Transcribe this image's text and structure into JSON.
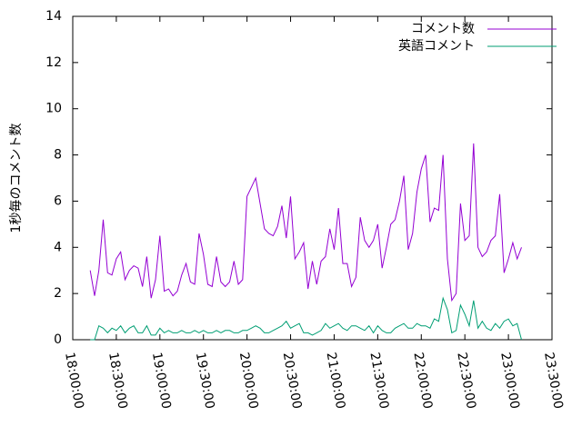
{
  "chart_data": {
    "type": "line",
    "y_label": "1秒毎のコメント数",
    "x": [
      "18:12:00",
      "18:15:00",
      "18:18:00",
      "18:21:00",
      "18:24:00",
      "18:27:00",
      "18:30:00",
      "18:33:00",
      "18:36:00",
      "18:39:00",
      "18:42:00",
      "18:45:00",
      "18:48:00",
      "18:51:00",
      "18:54:00",
      "18:57:00",
      "19:00:00",
      "19:03:00",
      "19:06:00",
      "19:09:00",
      "19:12:00",
      "19:15:00",
      "19:18:00",
      "19:21:00",
      "19:24:00",
      "19:27:00",
      "19:30:00",
      "19:33:00",
      "19:36:00",
      "19:39:00",
      "19:42:00",
      "19:45:00",
      "19:48:00",
      "19:51:00",
      "19:54:00",
      "19:57:00",
      "20:00:00",
      "20:03:00",
      "20:06:00",
      "20:09:00",
      "20:12:00",
      "20:15:00",
      "20:18:00",
      "20:21:00",
      "20:24:00",
      "20:27:00",
      "20:30:00",
      "20:33:00",
      "20:36:00",
      "20:39:00",
      "20:42:00",
      "20:45:00",
      "20:48:00",
      "20:51:00",
      "20:54:00",
      "20:57:00",
      "21:00:00",
      "21:03:00",
      "21:06:00",
      "21:09:00",
      "21:12:00",
      "21:15:00",
      "21:18:00",
      "21:21:00",
      "21:24:00",
      "21:27:00",
      "21:30:00",
      "21:33:00",
      "21:36:00",
      "21:39:00",
      "21:42:00",
      "21:45:00",
      "21:48:00",
      "21:51:00",
      "21:54:00",
      "21:57:00",
      "22:00:00",
      "22:03:00",
      "22:06:00",
      "22:09:00",
      "22:12:00",
      "22:15:00",
      "22:18:00",
      "22:21:00",
      "22:24:00",
      "22:27:00",
      "22:30:00",
      "22:33:00",
      "22:36:00",
      "22:39:00",
      "22:42:00",
      "22:45:00",
      "22:48:00",
      "22:51:00",
      "22:54:00",
      "22:57:00",
      "23:00:00",
      "23:03:00",
      "23:06:00",
      "23:09:00"
    ],
    "series": [
      {
        "name": "コメント数",
        "color": "#9400d3",
        "values": [
          3.0,
          1.9,
          3.0,
          5.2,
          2.9,
          2.8,
          3.5,
          3.8,
          2.6,
          3.0,
          3.2,
          3.1,
          2.3,
          3.6,
          1.8,
          2.6,
          4.5,
          2.1,
          2.2,
          1.9,
          2.1,
          2.8,
          3.3,
          2.5,
          2.4,
          4.6,
          3.7,
          2.4,
          2.3,
          3.6,
          2.5,
          2.3,
          2.5,
          3.4,
          2.4,
          2.6,
          6.2,
          6.6,
          7.0,
          5.9,
          4.8,
          4.6,
          4.5,
          4.9,
          5.8,
          4.4,
          6.2,
          3.5,
          3.8,
          4.2,
          2.2,
          3.4,
          2.4,
          3.4,
          3.6,
          4.8,
          3.9,
          5.7,
          3.3,
          3.3,
          2.3,
          2.7,
          5.3,
          4.3,
          4.0,
          4.3,
          5.0,
          3.1,
          4.0,
          5.0,
          5.2,
          6.0,
          7.1,
          3.9,
          4.6,
          6.4,
          7.4,
          8.0,
          5.1,
          5.7,
          5.6,
          8.0,
          3.5,
          1.7,
          2.0,
          5.9,
          4.3,
          4.5,
          8.5,
          4.0,
          3.6,
          3.8,
          4.3,
          4.5,
          6.3,
          2.9,
          3.5,
          4.2,
          3.5,
          4.0
        ]
      },
      {
        "name": "英語コメント",
        "color": "#009e73",
        "values": [
          0.0,
          0.0,
          0.6,
          0.5,
          0.3,
          0.5,
          0.4,
          0.6,
          0.3,
          0.5,
          0.6,
          0.3,
          0.3,
          0.6,
          0.2,
          0.2,
          0.5,
          0.3,
          0.4,
          0.3,
          0.3,
          0.4,
          0.3,
          0.3,
          0.4,
          0.3,
          0.4,
          0.3,
          0.3,
          0.4,
          0.3,
          0.4,
          0.4,
          0.3,
          0.3,
          0.4,
          0.4,
          0.5,
          0.6,
          0.5,
          0.3,
          0.3,
          0.4,
          0.5,
          0.6,
          0.8,
          0.5,
          0.6,
          0.7,
          0.3,
          0.3,
          0.2,
          0.3,
          0.4,
          0.7,
          0.5,
          0.6,
          0.7,
          0.5,
          0.4,
          0.6,
          0.6,
          0.5,
          0.4,
          0.6,
          0.3,
          0.6,
          0.4,
          0.3,
          0.3,
          0.5,
          0.6,
          0.7,
          0.5,
          0.5,
          0.7,
          0.6,
          0.6,
          0.5,
          0.9,
          0.8,
          1.8,
          1.3,
          0.3,
          0.4,
          1.5,
          1.1,
          0.6,
          1.7,
          0.5,
          0.8,
          0.5,
          0.4,
          0.7,
          0.5,
          0.8,
          0.9,
          0.6,
          0.7,
          0.0
        ]
      }
    ],
    "xlim": [
      "18:00:00",
      "23:30:00"
    ],
    "xticks": [
      "18:00:00",
      "18:30:00",
      "19:00:00",
      "19:30:00",
      "20:00:00",
      "20:30:00",
      "21:00:00",
      "21:30:00",
      "22:00:00",
      "22:30:00",
      "23:00:00",
      "23:30:00"
    ],
    "ylim": [
      0,
      14
    ],
    "yticks": [
      0,
      2,
      4,
      6,
      8,
      10,
      12,
      14
    ],
    "legend": "top-right"
  }
}
